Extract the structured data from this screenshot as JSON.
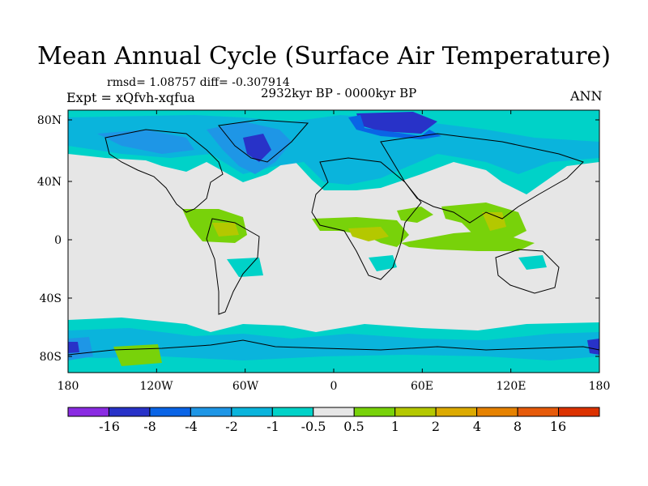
{
  "title": "Mean Annual Cycle (Surface Air Temperature)",
  "stats": {
    "rmsd_label": "rmsd=",
    "rmsd": "1.08757",
    "diff_label": "diff=",
    "diff": "-0.307914"
  },
  "experiment": "Expt = xQfvh-xqfua",
  "period": "2932kyr BP - 0000kyr BP",
  "season": "ANN",
  "axes": {
    "lon_ticks": [
      "180",
      "120W",
      "60W",
      "0",
      "60E",
      "120E",
      "180"
    ],
    "lat_ticks": [
      "80N",
      "40N",
      "0",
      "40S",
      "80S"
    ]
  },
  "colorbar": {
    "colors": [
      "#8a2be2",
      "#2832c8",
      "#0a64e6",
      "#1e96e6",
      "#0ab4dc",
      "#00d2c8",
      "#e6e6e6",
      "#78d20a",
      "#b4c800",
      "#dcaa00",
      "#e68200",
      "#e65a0a",
      "#dc3200"
    ],
    "labels": [
      "-16",
      "-8",
      "-4",
      "-2",
      "-1",
      "-0.5",
      "0.5",
      "1",
      "2",
      "4",
      "8",
      "16"
    ]
  },
  "colors": {
    "land_neutral": "#e6e6e6",
    "coast": "#000000"
  }
}
